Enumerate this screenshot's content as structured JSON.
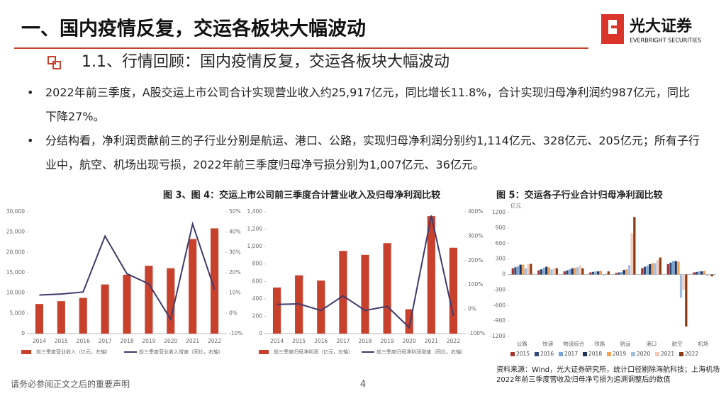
{
  "header": {
    "title": "一、国内疫情反复，交运各板块大幅波动",
    "logo_cn": "光大证券",
    "logo_en": "EVERBRIGHT SECURITIES"
  },
  "section": {
    "title": "1.1、行情回顾：国内疫情反复，交运各板块大幅波动"
  },
  "bullets": [
    "2022年前三季度，A股交运上市公司合计实现营业收入约25,917亿元，同比增长11.8%，合计实现归母净利润约987亿元，同比下降27%。",
    "分结构看，净利润贡献前三的子行业分别是航运、港口、公路，实现归母净利润分别约1,114亿元、328亿元、205亿元；所有子行业中，航空、机场出现亏损，2022年前三季度归母净亏损分别为1,007亿元、36亿元。"
  ],
  "figures": {
    "title_left": "图 3、图 4：交运上市公司前三季度合计营业收入及归母净利润比较"
  },
  "chart_data": [
    {
      "type": "combo",
      "categories": [
        "2014",
        "2015",
        "2016",
        "2017",
        "2018",
        "2019",
        "2020",
        "2021",
        "2022"
      ],
      "series": [
        {
          "name": "前三季度营业收入（亿元，左轴）",
          "type": "bar",
          "color": "#c8412d",
          "values": [
            7300,
            8000,
            8800,
            12100,
            14500,
            16700,
            16100,
            23300,
            25917
          ]
        },
        {
          "name": "前三季度营业收入增速（同比，右轴）",
          "type": "line",
          "axis": "y2",
          "color": "#3f3b6c",
          "values": [
            9,
            9.5,
            10.5,
            38,
            19.5,
            14.5,
            -3,
            44,
            11.8
          ]
        }
      ],
      "ylim": [
        0,
        30000
      ],
      "yticks": [
        0,
        {
          "value": 5000,
          "label": "5,000"
        },
        {
          "value": 10000,
          "label": "10,000"
        },
        {
          "value": 15000,
          "label": "15,000"
        },
        {
          "value": 20000,
          "label": "20,000"
        },
        {
          "value": 25000,
          "label": "25,000"
        },
        {
          "value": 30000,
          "label": "30,000"
        }
      ],
      "y2lim": [
        -10,
        50
      ],
      "y2ticks": [
        {
          "value": -10,
          "label": "-10%"
        },
        {
          "value": 0,
          "label": "0%"
        },
        {
          "value": 10,
          "label": "10%"
        },
        {
          "value": 20,
          "label": "20%"
        },
        {
          "value": 30,
          "label": "30%"
        },
        {
          "value": 40,
          "label": "40%"
        },
        {
          "value": 50,
          "label": "50%"
        }
      ]
    },
    {
      "type": "combo",
      "categories": [
        "2014",
        "2015",
        "2016",
        "2017",
        "2018",
        "2019",
        "2020",
        "2021",
        "2022"
      ],
      "series": [
        {
          "name": "前三季度归母净利润（亿元，左轴）",
          "type": "bar",
          "color": "#c8412d",
          "values": [
            530,
            670,
            610,
            950,
            905,
            1040,
            280,
            1350,
            987
          ]
        },
        {
          "name": "前三季度归母净利润增速（同比，右轴）",
          "type": "line",
          "axis": "y2",
          "color": "#3f3b6c",
          "values": [
            20,
            22,
            -5,
            55,
            -5,
            12,
            -75,
            385,
            -27
          ]
        }
      ],
      "ylim": [
        0,
        1400
      ],
      "yticks": [
        0,
        200,
        400,
        600,
        800,
        {
          "value": 1000,
          "label": "1,000"
        },
        {
          "value": 1200,
          "label": "1,200"
        },
        {
          "value": 1400,
          "label": "1,400"
        }
      ],
      "y2lim": [
        -100,
        400
      ],
      "y2ticks": [
        {
          "value": -100,
          "label": "-100%"
        },
        {
          "value": 0,
          "label": "0%"
        },
        {
          "value": 100,
          "label": "100%"
        },
        {
          "value": 200,
          "label": "200%"
        },
        {
          "value": 300,
          "label": "300%"
        },
        {
          "value": 400,
          "label": "400%"
        }
      ]
    },
    {
      "type": "bar",
      "title": "图 5：交运各子行业合计归母净利润比较",
      "ylabel": "亿元",
      "categories": [
        "公路",
        "快递",
        "物流综合",
        "铁路",
        "航运",
        "港口",
        "航空",
        "机场"
      ],
      "series": [
        {
          "name": "2015",
          "color": "#a8322e",
          "values": [
            120,
            80,
            60,
            40,
            30,
            120,
            200,
            40
          ]
        },
        {
          "name": "2016",
          "color": "#2f4a7a",
          "values": [
            140,
            100,
            80,
            50,
            40,
            150,
            230,
            50
          ]
        },
        {
          "name": "2017",
          "color": "#7aa6d6",
          "values": [
            160,
            130,
            100,
            60,
            50,
            170,
            260,
            60
          ]
        },
        {
          "name": "2018",
          "color": "#1f3560",
          "values": [
            190,
            150,
            120,
            60,
            90,
            200,
            260,
            60
          ]
        },
        {
          "name": "2019",
          "color": "#f0a050",
          "values": [
            190,
            140,
            130,
            70,
            100,
            220,
            250,
            70
          ]
        },
        {
          "name": "2020",
          "color": "#9fbfe0",
          "values": [
            120,
            100,
            140,
            -20,
            180,
            220,
            -450,
            -20
          ]
        },
        {
          "name": "2021",
          "color": "#f5c8b8",
          "values": [
            200,
            120,
            180,
            30,
            800,
            280,
            -300,
            -20
          ]
        },
        {
          "name": "2022",
          "color": "#8b3a12",
          "values": [
            205,
            120,
            120,
            60,
            1114,
            328,
            -1007,
            -36
          ]
        }
      ],
      "ylim": [
        -1200,
        1200
      ],
      "yticks": [
        -1200,
        -900,
        -600,
        -300,
        0,
        300,
        600,
        900,
        1200
      ]
    }
  ],
  "source": "资料来源：Wind，光大证券研究所，统计口径剔除海航科技；上海机场2022年前三季度营收及归母净亏损为追溯调整后的数值",
  "footer": {
    "disclaimer": "请务必参阅正文之后的重要声明",
    "page": "4"
  }
}
